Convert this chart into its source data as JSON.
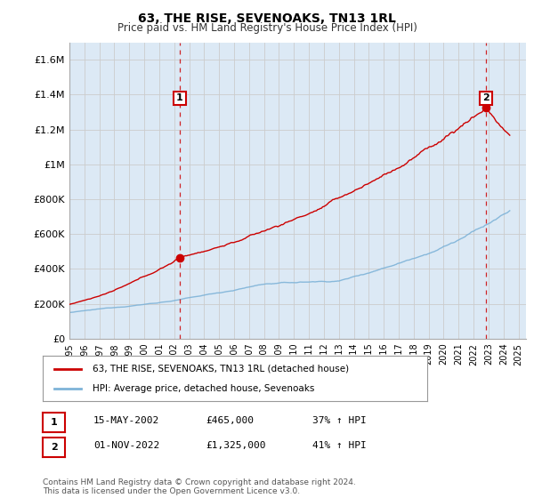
{
  "title": "63, THE RISE, SEVENOAKS, TN13 1RL",
  "subtitle": "Price paid vs. HM Land Registry's House Price Index (HPI)",
  "ylim": [
    0,
    1700000
  ],
  "yticks": [
    0,
    200000,
    400000,
    600000,
    800000,
    1000000,
    1200000,
    1400000,
    1600000
  ],
  "ytick_labels": [
    "£0",
    "£200K",
    "£400K",
    "£600K",
    "£800K",
    "£1M",
    "£1.2M",
    "£1.4M",
    "£1.6M"
  ],
  "xlim_start": 1995.0,
  "xlim_end": 2025.5,
  "legend_line1": "63, THE RISE, SEVENOAKS, TN13 1RL (detached house)",
  "legend_line2": "HPI: Average price, detached house, Sevenoaks",
  "annotation1_label": "1",
  "annotation1_date": "15-MAY-2002",
  "annotation1_price": "£465,000",
  "annotation1_pct": "37% ↑ HPI",
  "annotation2_label": "2",
  "annotation2_date": "01-NOV-2022",
  "annotation2_price": "£1,325,000",
  "annotation2_pct": "41% ↑ HPI",
  "footer": "Contains HM Land Registry data © Crown copyright and database right 2024.\nThis data is licensed under the Open Government Licence v3.0.",
  "hpi_color": "#7eb3d8",
  "price_color": "#cc0000",
  "vline_color": "#cc0000",
  "grid_color": "#cccccc",
  "plot_bg_color": "#dce9f5",
  "annotation_box_color": "#cc0000",
  "background_color": "#ffffff",
  "sale1_x": 2002.375,
  "sale1_y": 465000,
  "sale2_x": 2022.833,
  "sale2_y": 1325000
}
